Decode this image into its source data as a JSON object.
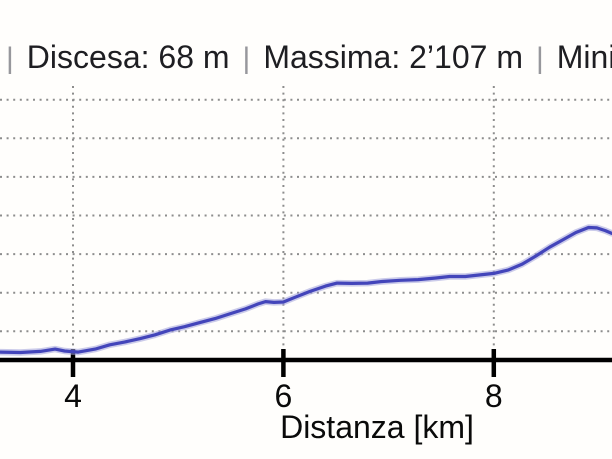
{
  "header": {
    "separator": "|",
    "stats": [
      "Discesa: 68 m",
      "Massima: 2’107 m",
      "Minima"
    ]
  },
  "colors": {
    "line": "#4345ba",
    "line_halo": "#a0a0da",
    "grid": "#8d8d8d",
    "axis": "#000000",
    "header_text": "#1e1e22",
    "separator": "#97979c",
    "background": "#fffefc"
  },
  "chart_data": {
    "type": "line",
    "title": "",
    "xlabel": "Distanza [km]",
    "ylabel": "",
    "grid": true,
    "x_visible_range_km": [
      3.31,
      9.12
    ],
    "x_ticks": [
      {
        "km": 4,
        "label": "4"
      },
      {
        "km": 6,
        "label": "6"
      },
      {
        "km": 8,
        "label": "8"
      }
    ],
    "y_gridlines_m": [
      2400,
      2300,
      2200,
      2100,
      2000,
      1900,
      1800
    ],
    "series": [
      {
        "name": "profilo-altimetrico",
        "points_km_m": [
          [
            3.31,
            1746
          ],
          [
            3.5,
            1745
          ],
          [
            3.69,
            1748
          ],
          [
            3.83,
            1754
          ],
          [
            3.92,
            1749
          ],
          [
            4.05,
            1746
          ],
          [
            4.21,
            1754
          ],
          [
            4.35,
            1765
          ],
          [
            4.49,
            1772
          ],
          [
            4.64,
            1781
          ],
          [
            4.78,
            1791
          ],
          [
            4.92,
            1803
          ],
          [
            5.06,
            1812
          ],
          [
            5.21,
            1823
          ],
          [
            5.35,
            1833
          ],
          [
            5.49,
            1845
          ],
          [
            5.64,
            1858
          ],
          [
            5.76,
            1871
          ],
          [
            5.83,
            1877
          ],
          [
            5.91,
            1875
          ],
          [
            6.0,
            1876
          ],
          [
            6.11,
            1888
          ],
          [
            6.25,
            1903
          ],
          [
            6.4,
            1917
          ],
          [
            6.51,
            1925
          ],
          [
            6.65,
            1924
          ],
          [
            6.8,
            1925
          ],
          [
            6.94,
            1929
          ],
          [
            7.11,
            1932
          ],
          [
            7.28,
            1934
          ],
          [
            7.45,
            1938
          ],
          [
            7.58,
            1942
          ],
          [
            7.73,
            1942
          ],
          [
            7.87,
            1946
          ],
          [
            8.0,
            1950
          ],
          [
            8.14,
            1959
          ],
          [
            8.27,
            1974
          ],
          [
            8.4,
            1995
          ],
          [
            8.53,
            2018
          ],
          [
            8.67,
            2039
          ],
          [
            8.78,
            2056
          ],
          [
            8.9,
            2069
          ],
          [
            8.98,
            2068
          ],
          [
            9.06,
            2061
          ],
          [
            9.12,
            2054
          ]
        ]
      }
    ]
  }
}
